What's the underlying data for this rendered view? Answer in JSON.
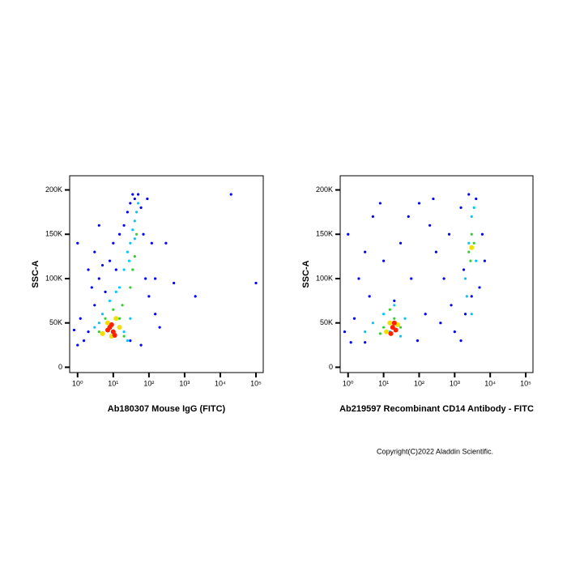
{
  "chart_data": [
    {
      "type": "scatter",
      "x_label": "Ab180307 Mouse IgG (FITC)",
      "y_label": "SSC-A",
      "xlog": true,
      "xlim": [
        0.6,
        160000
      ],
      "ylim": [
        -6000,
        216000
      ],
      "xticks": [
        {
          "value": 1,
          "label": "10⁰"
        },
        {
          "value": 10,
          "label": "10¹"
        },
        {
          "value": 100,
          "label": "10²"
        },
        {
          "value": 1000,
          "label": "10³"
        },
        {
          "value": 10000,
          "label": "10⁴"
        },
        {
          "value": 100000,
          "label": "10⁵"
        }
      ],
      "yticks": [
        0,
        {
          "value": 50000,
          "label": "50K"
        },
        {
          "value": 100000,
          "label": "100K"
        },
        {
          "value": 150000,
          "label": "150K"
        },
        {
          "value": 200000,
          "label": "200K"
        }
      ],
      "series": [
        {
          "color": "#0000ff",
          "x": [
            1.5,
            2,
            1.2,
            3,
            2.5,
            4,
            5,
            3,
            8,
            10,
            15,
            12,
            20,
            25,
            30,
            40,
            50,
            60,
            70,
            80,
            100,
            150,
            200,
            120,
            90,
            35,
            6,
            2,
            1,
            0.8,
            1,
            60,
            30,
            100000,
            20000,
            300,
            500,
            2000,
            150,
            4
          ],
          "values": [
            30000,
            40000,
            55000,
            70000,
            90000,
            100000,
            115000,
            130000,
            120000,
            140000,
            150000,
            110000,
            160000,
            175000,
            185000,
            190000,
            195000,
            180000,
            150000,
            100000,
            80000,
            60000,
            45000,
            140000,
            190000,
            195000,
            85000,
            110000,
            140000,
            42000,
            25000,
            25000,
            30000,
            95000,
            195000,
            140000,
            95000,
            80000,
            100000,
            160000
          ]
        },
        {
          "color": "#00c8ff",
          "x": [
            5,
            8,
            15,
            20,
            25,
            30,
            35,
            40,
            45,
            50,
            4,
            20,
            30,
            12,
            28,
            40,
            3,
            25
          ],
          "values": [
            60000,
            75000,
            90000,
            110000,
            130000,
            140000,
            155000,
            165000,
            175000,
            185000,
            50000,
            40000,
            55000,
            85000,
            120000,
            145000,
            45000,
            30000
          ]
        },
        {
          "color": "#30d030",
          "x": [
            6,
            10,
            18,
            30,
            35,
            40,
            45,
            4,
            20,
            15
          ],
          "values": [
            55000,
            65000,
            70000,
            90000,
            110000,
            125000,
            150000,
            40000,
            35000,
            55000
          ]
        },
        {
          "color": "#f0e000",
          "x": [
            7,
            12,
            9,
            15,
            5
          ],
          "values": [
            50000,
            55000,
            35000,
            45000,
            38000
          ]
        },
        {
          "color": "#ff2000",
          "x": [
            8,
            10,
            9,
            7,
            11
          ],
          "values": [
            45000,
            40000,
            48000,
            42000,
            36000
          ]
        }
      ]
    },
    {
      "type": "scatter",
      "x_label": "Ab219597 Recombinant CD14 Antibody - FITC",
      "y_label": "SSC-A",
      "xlog": true,
      "xlim": [
        0.6,
        160000
      ],
      "ylim": [
        -6000,
        216000
      ],
      "xticks": [
        {
          "value": 1,
          "label": "10⁰"
        },
        {
          "value": 10,
          "label": "10¹"
        },
        {
          "value": 100,
          "label": "10²"
        },
        {
          "value": 1000,
          "label": "10³"
        },
        {
          "value": 10000,
          "label": "10⁴"
        },
        {
          "value": 100000,
          "label": "10⁵"
        }
      ],
      "yticks": [
        0,
        {
          "value": 50000,
          "label": "50K"
        },
        {
          "value": 100000,
          "label": "100K"
        },
        {
          "value": 150000,
          "label": "150K"
        },
        {
          "value": 200000,
          "label": "200K"
        }
      ],
      "series": [
        {
          "color": "#0000ff",
          "x": [
            0.8,
            1.5,
            2,
            3,
            5,
            8,
            1,
            4,
            10,
            30,
            50,
            100,
            200,
            300,
            500,
            800,
            1000,
            1500,
            700,
            400,
            2000,
            3000,
            5000,
            6000,
            1500,
            2500,
            4000,
            150,
            60,
            1.2,
            20,
            3,
            90,
            250,
            7000,
            1800
          ],
          "values": [
            40000,
            55000,
            100000,
            130000,
            170000,
            185000,
            150000,
            80000,
            120000,
            140000,
            170000,
            185000,
            160000,
            130000,
            100000,
            70000,
            40000,
            30000,
            150000,
            50000,
            60000,
            80000,
            90000,
            150000,
            180000,
            195000,
            190000,
            60000,
            100000,
            28000,
            75000,
            28000,
            30000,
            190000,
            120000,
            110000
          ]
        },
        {
          "color": "#00c8ff",
          "x": [
            5,
            10,
            20,
            40,
            3,
            30,
            2000,
            2500,
            3000,
            3500,
            4000,
            2200,
            3000,
            15
          ],
          "values": [
            50000,
            60000,
            70000,
            55000,
            40000,
            35000,
            100000,
            140000,
            170000,
            180000,
            120000,
            80000,
            60000,
            40000
          ]
        },
        {
          "color": "#30d030",
          "x": [
            10,
            20,
            30,
            8,
            2500,
            3000,
            3500,
            2800,
            15
          ],
          "values": [
            45000,
            55000,
            45000,
            38000,
            130000,
            150000,
            140000,
            120000,
            65000
          ]
        },
        {
          "color": "#f0e000",
          "x": [
            15,
            25,
            12,
            3000
          ],
          "values": [
            50000,
            48000,
            40000,
            135000
          ]
        },
        {
          "color": "#ff2000",
          "x": [
            18,
            22,
            20,
            16
          ],
          "values": [
            45000,
            42000,
            50000,
            38000
          ]
        }
      ]
    }
  ],
  "footer": "Copyright(C)2022 Aladdin Scientific."
}
